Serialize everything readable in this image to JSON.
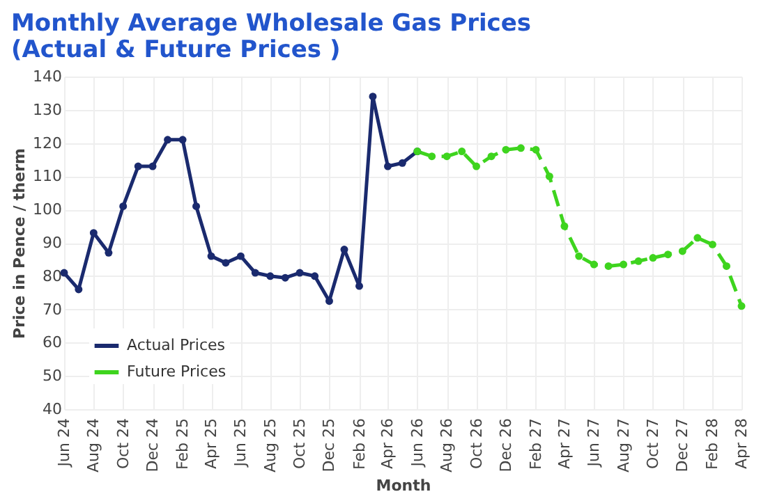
{
  "chart_data": {
    "type": "line",
    "title": [
      "Monthly Average Wholesale Gas Prices",
      "(Actual & Future Prices )"
    ],
    "xlabel": "Month",
    "ylabel": "Price in Pence / therm",
    "ylim": [
      40,
      140
    ],
    "yticks": [
      40,
      50,
      60,
      70,
      80,
      90,
      100,
      110,
      120,
      130,
      140
    ],
    "xlim": [
      "2024-06",
      "2028-04"
    ],
    "xticks": [
      {
        "value": "2024-06",
        "label": "Jun 24"
      },
      {
        "value": "2024-08",
        "label": "Aug 24"
      },
      {
        "value": "2024-10",
        "label": "Oct 24"
      },
      {
        "value": "2024-12",
        "label": "Dec 24"
      },
      {
        "value": "2025-02",
        "label": "Feb 25"
      },
      {
        "value": "2025-04",
        "label": "Apr 25"
      },
      {
        "value": "2025-06",
        "label": "Jun 25"
      },
      {
        "value": "2025-08",
        "label": "Aug 25"
      },
      {
        "value": "2025-10",
        "label": "Oct 25"
      },
      {
        "value": "2025-12",
        "label": "Dec 25"
      },
      {
        "value": "2026-02",
        "label": "Feb 26"
      },
      {
        "value": "2026-04",
        "label": "Apr 26"
      },
      {
        "value": "2026-06",
        "label": "Jun 26"
      },
      {
        "value": "2026-08",
        "label": "Aug 26"
      },
      {
        "value": "2026-10",
        "label": "Oct 26"
      },
      {
        "value": "2026-12",
        "label": "Dec 26"
      },
      {
        "value": "2027-02",
        "label": "Feb 27"
      },
      {
        "value": "2027-04",
        "label": "Apr 27"
      },
      {
        "value": "2027-06",
        "label": "Jun 27"
      },
      {
        "value": "2027-08",
        "label": "Aug 27"
      },
      {
        "value": "2027-10",
        "label": "Oct 27"
      },
      {
        "value": "2027-12",
        "label": "Dec 27"
      },
      {
        "value": "2028-02",
        "label": "Feb 28"
      },
      {
        "value": "2028-04",
        "label": "Apr 28"
      }
    ],
    "grid": true,
    "legend": "bottom left",
    "marker": "circle",
    "series": [
      {
        "name": "Actual Prices",
        "color": "#1a2a6e",
        "line_style": "solid",
        "x": [
          "2024-06",
          "2024-07",
          "2024-08",
          "2024-09",
          "2024-10",
          "2024-11",
          "2024-12",
          "2025-01",
          "2025-02",
          "2025-03",
          "2025-04",
          "2025-05",
          "2025-06",
          "2025-07",
          "2025-08",
          "2025-09",
          "2025-10",
          "2025-11",
          "2025-12",
          "2026-01",
          "2026-02",
          "2026-03",
          "2026-04",
          "2026-05",
          "2026-06"
        ],
        "values": [
          81,
          76,
          93,
          87,
          101,
          113,
          113,
          121,
          121,
          101,
          86,
          84,
          86,
          81,
          80,
          79.5,
          81,
          80,
          72.5,
          88,
          77,
          134,
          113,
          114,
          117.5
        ]
      },
      {
        "name": "Future Prices",
        "color": "#3ed41e",
        "line_style": "dashed",
        "x": [
          "2026-06",
          "2026-07",
          "2026-08",
          "2026-09",
          "2026-10",
          "2026-11",
          "2026-12",
          "2027-01",
          "2027-02",
          "2027-03",
          "2027-04",
          "2027-05",
          "2027-06",
          "2027-07",
          "2027-08",
          "2027-09",
          "2027-10",
          "2027-11",
          "2027-12",
          "2028-01",
          "2028-02",
          "2028-03",
          "2028-04"
        ],
        "values": [
          117.5,
          116,
          116,
          117.5,
          113,
          116,
          118,
          118.5,
          118,
          110,
          95,
          86,
          83.5,
          83,
          83.5,
          84.5,
          85.5,
          86.5,
          87.5,
          91.5,
          89.5,
          83,
          71
        ]
      }
    ]
  }
}
